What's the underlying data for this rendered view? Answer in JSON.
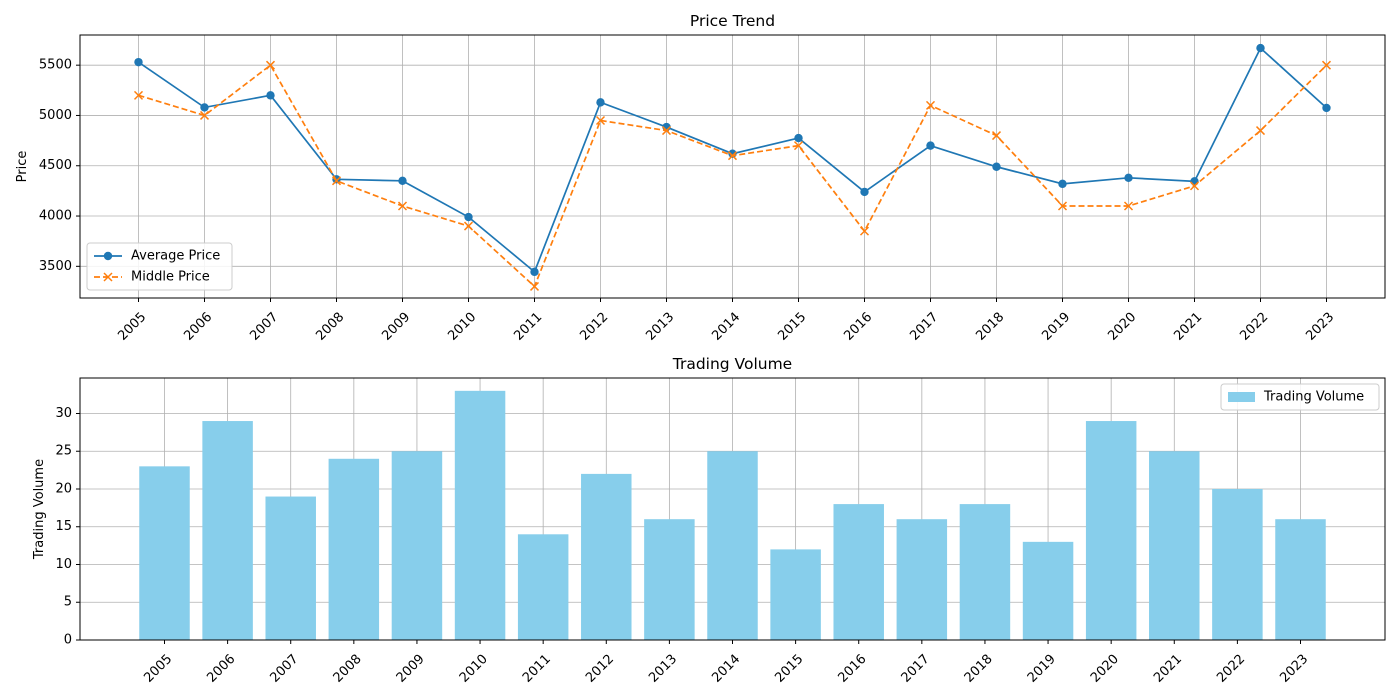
{
  "chart_data": [
    {
      "type": "line",
      "title": "Price Trend",
      "xlabel": "",
      "ylabel": "Price",
      "x": [
        "2005",
        "2006",
        "2007",
        "2008",
        "2009",
        "2010",
        "2011",
        "2012",
        "2013",
        "2014",
        "2015",
        "2016",
        "2017",
        "2018",
        "2019",
        "2020",
        "2021",
        "2022",
        "2023"
      ],
      "series": [
        {
          "name": "Average Price",
          "values": [
            5530,
            5080,
            5200,
            4365,
            4350,
            3990,
            3445,
            5130,
            4885,
            4620,
            4775,
            4240,
            4700,
            4490,
            4320,
            4380,
            4345,
            5670,
            5075
          ],
          "color": "#1f77b4",
          "line_style": "solid",
          "marker": "circle"
        },
        {
          "name": "Middle Price",
          "values": [
            5200,
            5000,
            5500,
            4350,
            4100,
            3900,
            3300,
            4950,
            4850,
            4600,
            4700,
            3850,
            5100,
            4800,
            4100,
            4100,
            4300,
            4850,
            5500
          ],
          "color": "#ff7f0e",
          "line_style": "dashed",
          "marker": "x"
        }
      ],
      "ylim": [
        3185,
        5800
      ],
      "yticks": [
        3500,
        4000,
        4500,
        5000,
        5500
      ],
      "grid": true,
      "legend_position": "lower-left"
    },
    {
      "type": "bar",
      "title": "Trading Volume",
      "xlabel": "",
      "ylabel": "Trading Volume",
      "categories": [
        "2005",
        "2006",
        "2007",
        "2008",
        "2009",
        "2010",
        "2011",
        "2012",
        "2013",
        "2014",
        "2015",
        "2016",
        "2017",
        "2018",
        "2019",
        "2020",
        "2021",
        "2022",
        "2023"
      ],
      "series": [
        {
          "name": "Trading Volume",
          "values": [
            23,
            29,
            19,
            24,
            25,
            33,
            14,
            22,
            16,
            25,
            12,
            18,
            16,
            18,
            13,
            29,
            25,
            20,
            16
          ],
          "color": "#87ceeb"
        }
      ],
      "ylim": [
        0,
        34.7
      ],
      "yticks": [
        0,
        5,
        10,
        15,
        20,
        25,
        30
      ],
      "grid": true,
      "legend_position": "top-right"
    }
  ],
  "colors": {
    "background": "#ffffff",
    "axes": "#000000",
    "grid": "#b0b0b0"
  }
}
